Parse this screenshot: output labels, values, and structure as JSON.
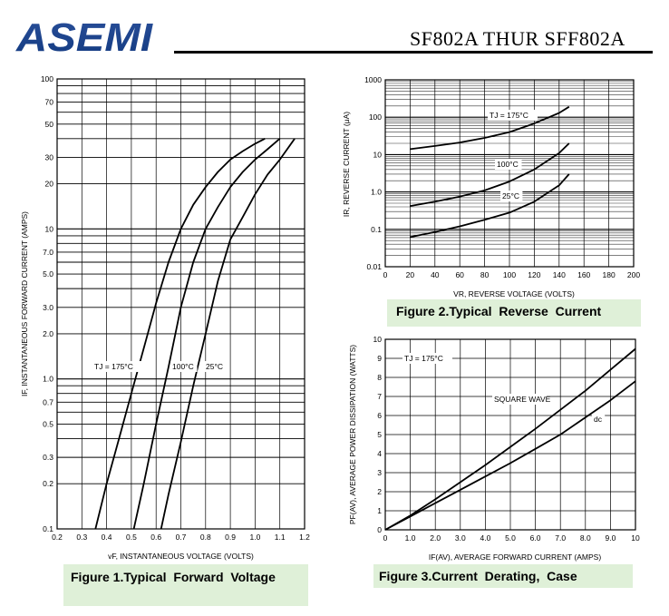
{
  "header": {
    "logo_text": "ASEMI",
    "title": "SF802A THUR SFF802A"
  },
  "captions": {
    "fig1": "Figure 1.Typical  Forward  Voltage",
    "fig2": "Figure 2.Typical  Reverse  Current",
    "fig3": "Figure 3.Current  Derating,  Case"
  },
  "chart_data": [
    {
      "id": "fig1",
      "type": "line",
      "title": "Figure 1.Typical  Forward  Voltage",
      "xlabel": "vF, INSTANTANEOUS VOLTAGE (VOLTS)",
      "ylabel": "IF, INSTANTANEOUS FORWARD CURRENT (AMPS)",
      "xlim": [
        0.2,
        1.2
      ],
      "ylim": [
        0.1,
        100
      ],
      "yscale": "log",
      "grid": true,
      "xticks": [
        "0.2",
        "0.3",
        "0.4",
        "0.5",
        "0.6",
        "0.7",
        "0.8",
        "0.9",
        "1.0",
        "1.1",
        "1.2"
      ],
      "yticks": [
        {
          "v": 100,
          "l": "100"
        },
        {
          "v": 70,
          "l": "70"
        },
        {
          "v": 50,
          "l": "50"
        },
        {
          "v": 30,
          "l": "30"
        },
        {
          "v": 20,
          "l": "20"
        },
        {
          "v": 10,
          "l": "10"
        },
        {
          "v": 7,
          "l": "7.0"
        },
        {
          "v": 5,
          "l": "5.0"
        },
        {
          "v": 3,
          "l": "3.0"
        },
        {
          "v": 2,
          "l": "2.0"
        },
        {
          "v": 1,
          "l": "1.0"
        },
        {
          "v": 0.7,
          "l": "0.7"
        },
        {
          "v": 0.5,
          "l": "0.5"
        },
        {
          "v": 0.3,
          "l": "0.3"
        },
        {
          "v": 0.2,
          "l": "0.2"
        },
        {
          "v": 0.1,
          "l": "0.1"
        }
      ],
      "series": [
        {
          "name": "TJ = 175°C",
          "x": [
            0.355,
            0.4,
            0.45,
            0.5,
            0.55,
            0.6,
            0.65,
            0.7,
            0.75,
            0.8,
            0.85,
            0.9,
            0.95,
            1.0,
            1.04
          ],
          "y": [
            0.1,
            0.2,
            0.4,
            0.8,
            1.6,
            3.2,
            6.0,
            10,
            14.5,
            19,
            24,
            29,
            33,
            37,
            40
          ]
        },
        {
          "name": "100°C",
          "x": [
            0.51,
            0.55,
            0.6,
            0.65,
            0.7,
            0.75,
            0.8,
            0.85,
            0.9,
            0.95,
            1.0,
            1.05,
            1.1
          ],
          "y": [
            0.1,
            0.2,
            0.5,
            1.2,
            3.0,
            6.0,
            10,
            14,
            19,
            24,
            29,
            34,
            40
          ]
        },
        {
          "name": "25°C",
          "x": [
            0.62,
            0.65,
            0.7,
            0.75,
            0.8,
            0.85,
            0.9,
            0.95,
            1.0,
            1.05,
            1.1,
            1.16
          ],
          "y": [
            0.1,
            0.17,
            0.38,
            0.9,
            2.0,
            4.5,
            8.5,
            12,
            17,
            23,
            29,
            40
          ]
        }
      ],
      "annotations": [
        {
          "text": "TJ = 175°C",
          "series": 0
        },
        {
          "text": "100°C",
          "series": 1
        },
        {
          "text": "25°C",
          "series": 2
        }
      ]
    },
    {
      "id": "fig2",
      "type": "line",
      "title": "Figure 2.Typical  Reverse  Current",
      "xlabel": "VR, REVERSE VOLTAGE (VOLTS)",
      "ylabel": "IR, REVERSE CURRENT (μA)",
      "xlim": [
        0,
        200
      ],
      "ylim": [
        0.01,
        1000
      ],
      "yscale": "log",
      "grid": true,
      "xticks": [
        "0",
        "20",
        "40",
        "60",
        "80",
        "100",
        "120",
        "140",
        "160",
        "180",
        "200"
      ],
      "yticks": [
        {
          "v": 1000,
          "l": "1000"
        },
        {
          "v": 100,
          "l": "100"
        },
        {
          "v": 10,
          "l": "10"
        },
        {
          "v": 1,
          "l": "1.0"
        },
        {
          "v": 0.1,
          "l": "0.1"
        },
        {
          "v": 0.01,
          "l": "0.01"
        }
      ],
      "series": [
        {
          "name": "TJ = 175°C",
          "x": [
            20,
            40,
            60,
            80,
            100,
            120,
            140,
            148
          ],
          "y": [
            14,
            17,
            21,
            28,
            40,
            68,
            130,
            190
          ]
        },
        {
          "name": "100°C",
          "x": [
            20,
            40,
            60,
            80,
            100,
            120,
            140,
            148
          ],
          "y": [
            0.42,
            0.55,
            0.75,
            1.1,
            1.9,
            4,
            11,
            20
          ]
        },
        {
          "name": "25°C",
          "x": [
            20,
            40,
            60,
            80,
            100,
            120,
            140,
            148
          ],
          "y": [
            0.062,
            0.085,
            0.12,
            0.18,
            0.28,
            0.55,
            1.5,
            3.0
          ]
        }
      ],
      "annotations": [
        {
          "text": "TJ = 175°C",
          "series": 0
        },
        {
          "text": "100°C",
          "series": 1
        },
        {
          "text": "25°C",
          "series": 2
        }
      ]
    },
    {
      "id": "fig3",
      "type": "line",
      "title": "Figure 3.Current  Derating,  Case",
      "xlabel": "IF(AV), AVERAGE FORWARD CURRENT (AMPS)",
      "ylabel": "PF(AV), AVERAGE POWER DISSIPATION (WATTS)",
      "xlim": [
        0,
        10
      ],
      "ylim": [
        0,
        10
      ],
      "grid": true,
      "xticks": [
        "0",
        "1.0",
        "2.0",
        "3.0",
        "4.0",
        "5.0",
        "6.0",
        "7.0",
        "8.0",
        "9.0",
        "10"
      ],
      "yticks": [
        {
          "v": 10,
          "l": "10"
        },
        {
          "v": 9,
          "l": "9"
        },
        {
          "v": 8,
          "l": "8"
        },
        {
          "v": 7,
          "l": "7"
        },
        {
          "v": 6,
          "l": "6"
        },
        {
          "v": 5,
          "l": "5"
        },
        {
          "v": 4,
          "l": "4"
        },
        {
          "v": 3,
          "l": "3"
        },
        {
          "v": 2,
          "l": "2"
        },
        {
          "v": 1,
          "l": "1"
        },
        {
          "v": 0,
          "l": "0"
        }
      ],
      "series": [
        {
          "name": "SQUARE WAVE",
          "x": [
            0,
            1,
            2,
            3,
            4,
            5,
            6,
            7,
            8,
            9,
            10
          ],
          "y": [
            0,
            0.75,
            1.6,
            2.5,
            3.4,
            4.35,
            5.3,
            6.3,
            7.3,
            8.4,
            9.5
          ]
        },
        {
          "name": "dc",
          "x": [
            0,
            1,
            2,
            3,
            4,
            5,
            6,
            7,
            8,
            9,
            10
          ],
          "y": [
            0,
            0.7,
            1.4,
            2.1,
            2.8,
            3.5,
            4.25,
            5.0,
            5.9,
            6.8,
            7.8
          ]
        }
      ],
      "annotations": [
        {
          "text": "TJ = 175°C"
        },
        {
          "text": "SQUARE WAVE",
          "series": 0
        },
        {
          "text": "dc",
          "series": 1
        }
      ]
    }
  ]
}
